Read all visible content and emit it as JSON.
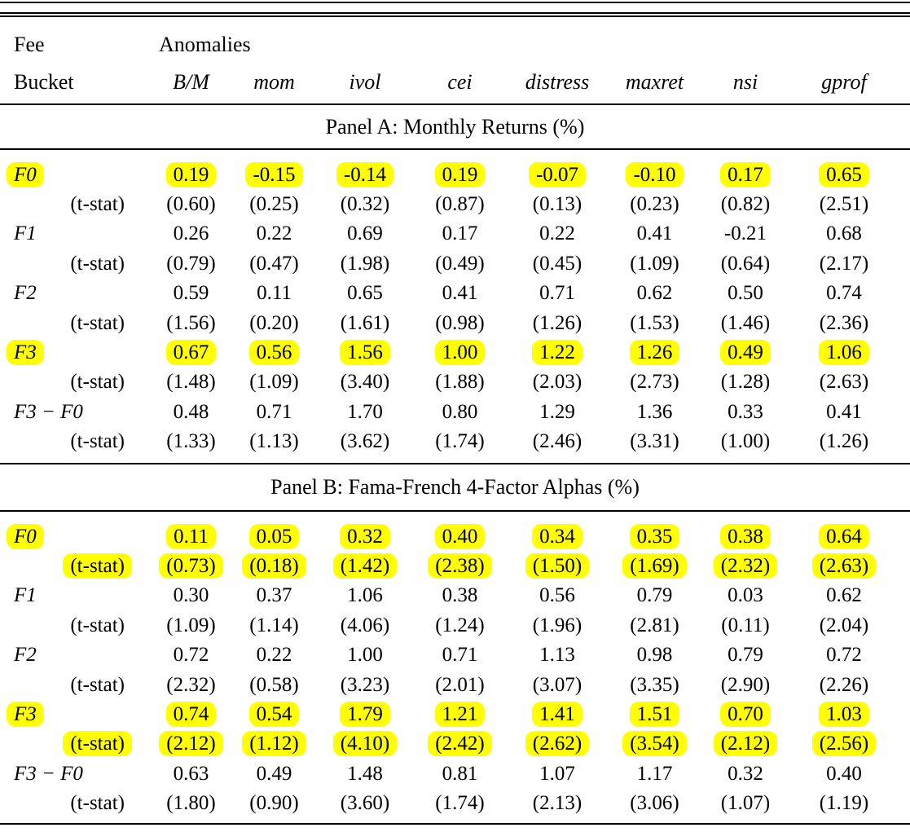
{
  "highlight_color": "#ffff00",
  "header": {
    "row1_col1": "Fee",
    "row2_col1": "Bucket",
    "group_label": "Anomalies",
    "columns": [
      "B/M",
      "mom",
      "ivol",
      "cei",
      "distress",
      "maxret",
      "nsi",
      "gprof"
    ]
  },
  "panels": [
    {
      "title": "Panel A: Monthly Returns (%)",
      "rows": [
        {
          "label": "F0",
          "math_label": true,
          "highlight": true,
          "values": [
            "0.19",
            "-0.15",
            "-0.14",
            "0.19",
            "-0.07",
            "-0.10",
            "0.17",
            "0.65"
          ]
        },
        {
          "label": "(t-stat)",
          "math_label": false,
          "highlight": false,
          "values": [
            "(0.60)",
            "(0.25)",
            "(0.32)",
            "(0.87)",
            "(0.13)",
            "(0.23)",
            "(0.82)",
            "(2.51)"
          ]
        },
        {
          "label": "F1",
          "math_label": true,
          "highlight": false,
          "values": [
            "0.26",
            "0.22",
            "0.69",
            "0.17",
            "0.22",
            "0.41",
            "-0.21",
            "0.68"
          ]
        },
        {
          "label": "(t-stat)",
          "math_label": false,
          "highlight": false,
          "values": [
            "(0.79)",
            "(0.47)",
            "(1.98)",
            "(0.49)",
            "(0.45)",
            "(1.09)",
            "(0.64)",
            "(2.17)"
          ]
        },
        {
          "label": "F2",
          "math_label": true,
          "highlight": false,
          "values": [
            "0.59",
            "0.11",
            "0.65",
            "0.41",
            "0.71",
            "0.62",
            "0.50",
            "0.74"
          ]
        },
        {
          "label": "(t-stat)",
          "math_label": false,
          "highlight": false,
          "values": [
            "(1.56)",
            "(0.20)",
            "(1.61)",
            "(0.98)",
            "(1.26)",
            "(1.53)",
            "(1.46)",
            "(2.36)"
          ]
        },
        {
          "label": "F3",
          "math_label": true,
          "highlight": true,
          "values": [
            "0.67",
            "0.56",
            "1.56",
            "1.00",
            "1.22",
            "1.26",
            "0.49",
            "1.06"
          ]
        },
        {
          "label": "(t-stat)",
          "math_label": false,
          "highlight": false,
          "values": [
            "(1.48)",
            "(1.09)",
            "(3.40)",
            "(1.88)",
            "(2.03)",
            "(2.73)",
            "(1.28)",
            "(2.63)"
          ]
        },
        {
          "label": "F3 − F0",
          "math_label": true,
          "highlight": false,
          "values": [
            "0.48",
            "0.71",
            "1.70",
            "0.80",
            "1.29",
            "1.36",
            "0.33",
            "0.41"
          ]
        },
        {
          "label": "(t-stat)",
          "math_label": false,
          "highlight": false,
          "values": [
            "(1.33)",
            "(1.13)",
            "(3.62)",
            "(1.74)",
            "(2.46)",
            "(3.31)",
            "(1.00)",
            "(1.26)"
          ]
        }
      ]
    },
    {
      "title": "Panel B: Fama-French 4-Factor Alphas (%)",
      "rows": [
        {
          "label": "F0",
          "math_label": true,
          "highlight": true,
          "values": [
            "0.11",
            "0.05",
            "0.32",
            "0.40",
            "0.34",
            "0.35",
            "0.38",
            "0.64"
          ]
        },
        {
          "label": "(t-stat)",
          "math_label": false,
          "highlight": true,
          "values": [
            "(0.73)",
            "(0.18)",
            "(1.42)",
            "(2.38)",
            "(1.50)",
            "(1.69)",
            "(2.32)",
            "(2.63)"
          ]
        },
        {
          "label": "F1",
          "math_label": true,
          "highlight": false,
          "values": [
            "0.30",
            "0.37",
            "1.06",
            "0.38",
            "0.56",
            "0.79",
            "0.03",
            "0.62"
          ]
        },
        {
          "label": "(t-stat)",
          "math_label": false,
          "highlight": false,
          "values": [
            "(1.09)",
            "(1.14)",
            "(4.06)",
            "(1.24)",
            "(1.96)",
            "(2.81)",
            "(0.11)",
            "(2.04)"
          ]
        },
        {
          "label": "F2",
          "math_label": true,
          "highlight": false,
          "values": [
            "0.72",
            "0.22",
            "1.00",
            "0.71",
            "1.13",
            "0.98",
            "0.79",
            "0.72"
          ]
        },
        {
          "label": "(t-stat)",
          "math_label": false,
          "highlight": false,
          "values": [
            "(2.32)",
            "(0.58)",
            "(3.23)",
            "(2.01)",
            "(3.07)",
            "(3.35)",
            "(2.90)",
            "(2.26)"
          ]
        },
        {
          "label": "F3",
          "math_label": true,
          "highlight": true,
          "values": [
            "0.74",
            "0.54",
            "1.79",
            "1.21",
            "1.41",
            "1.51",
            "0.70",
            "1.03"
          ]
        },
        {
          "label": "(t-stat)",
          "math_label": false,
          "highlight": true,
          "values": [
            "(2.12)",
            "(1.12)",
            "(4.10)",
            "(2.42)",
            "(2.62)",
            "(3.54)",
            "(2.12)",
            "(2.56)"
          ]
        },
        {
          "label": "F3 − F0",
          "math_label": true,
          "highlight": false,
          "values": [
            "0.63",
            "0.49",
            "1.48",
            "0.81",
            "1.07",
            "1.17",
            "0.32",
            "0.40"
          ]
        },
        {
          "label": "(t-stat)",
          "math_label": false,
          "highlight": false,
          "values": [
            "(1.80)",
            "(0.90)",
            "(3.60)",
            "(1.74)",
            "(2.13)",
            "(3.06)",
            "(1.07)",
            "(1.19)"
          ]
        }
      ]
    }
  ]
}
